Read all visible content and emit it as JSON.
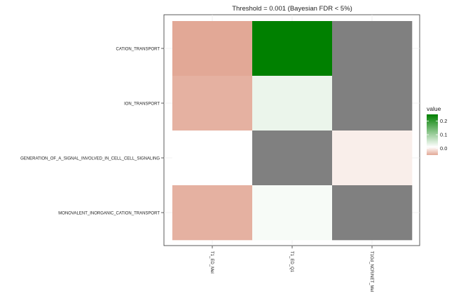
{
  "chart_data": {
    "type": "heatmap",
    "title": "Threshold = 0.001 (Bayesian FDR < 5%)",
    "xlabel": "",
    "ylabel": "",
    "x_categories": [
      "T1_ED_Mel",
      "T1_ED_Q1",
      "T1Gd_NCR/NET_Mel"
    ],
    "y_categories": [
      "CATION_TRANSPORT",
      "ION_TRANSPORT",
      "GENERATION_OF_A_SIGNAL_INVOLVED_IN_CELL_CELL_SIGNALING",
      "MONOVALENT_INORGANIC_CATION_TRANSPORT"
    ],
    "values": [
      [
        -0.05,
        0.25,
        null
      ],
      [
        -0.045,
        0.02,
        null
      ],
      [
        0.0,
        null,
        -0.01
      ],
      [
        -0.045,
        0.008,
        null
      ]
    ],
    "na_color": "#808080",
    "low_color": "#e2a896",
    "mid_color": "#ffffff",
    "high_color": "#008000",
    "legend": {
      "title": "value",
      "ticks": [
        0.2,
        0.1,
        0.0
      ],
      "tick_labels": [
        "0.2",
        "0.1",
        "0.0"
      ],
      "position": "right"
    },
    "grid": true
  }
}
